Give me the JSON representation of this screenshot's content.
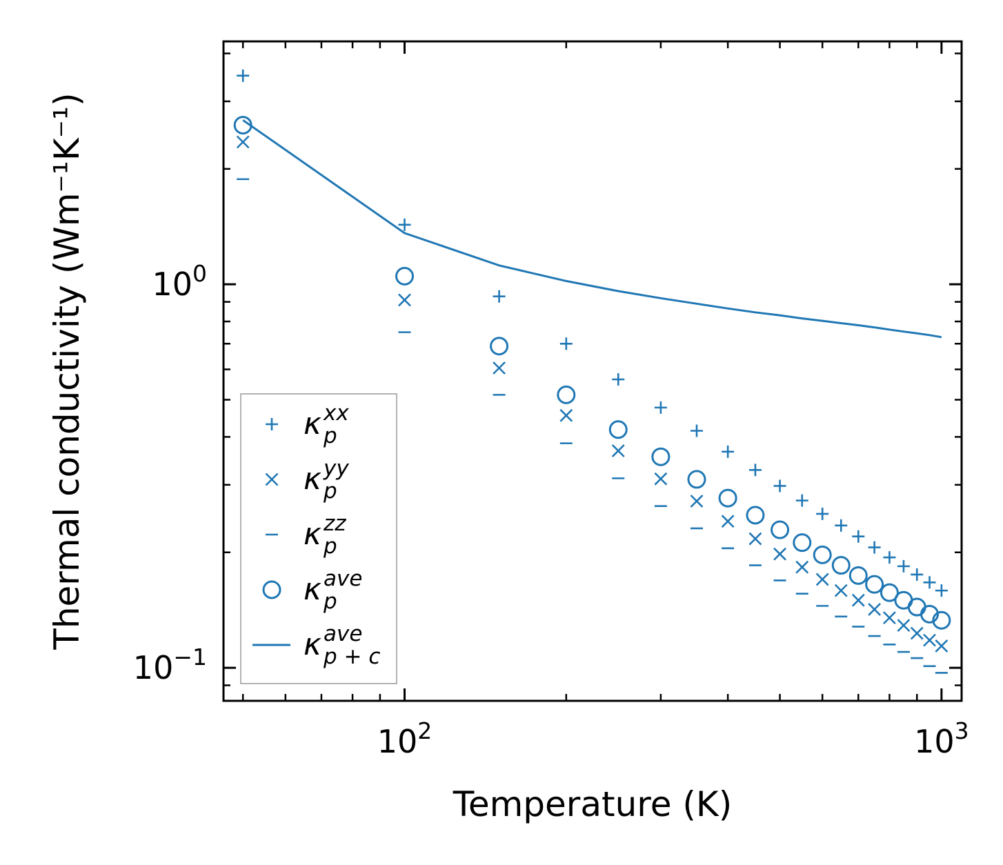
{
  "chart_data": {
    "type": "scatter",
    "title": "",
    "xlabel": "Temperature (K)",
    "ylabel": "Thermal conductivity (Wm⁻¹K⁻¹)",
    "xscale": "log",
    "yscale": "log",
    "xlim": [
      46,
      1090
    ],
    "ylim": [
      0.082,
      4.3
    ],
    "grid": false,
    "legend_position": "lower-left",
    "x_ticks": [
      {
        "value": 100,
        "base": "10",
        "exp": "2"
      },
      {
        "value": 1000,
        "base": "10",
        "exp": "3"
      }
    ],
    "y_ticks": [
      {
        "value": 0.1,
        "base": "10",
        "exp": "−1"
      },
      {
        "value": 1,
        "base": "10",
        "exp": "0"
      }
    ],
    "color": "#1f77b4",
    "x": [
      50,
      100,
      150,
      200,
      250,
      300,
      350,
      400,
      450,
      500,
      550,
      600,
      650,
      700,
      750,
      800,
      850,
      900,
      950,
      1000
    ],
    "series": [
      {
        "name": "kxx",
        "marker": "plus",
        "legend": {
          "base": "κ",
          "sub": "p",
          "sup": "xx"
        },
        "values": [
          3.5,
          1.43,
          0.93,
          0.7,
          0.565,
          0.477,
          0.415,
          0.366,
          0.328,
          0.298,
          0.273,
          0.252,
          0.235,
          0.22,
          0.206,
          0.194,
          0.184,
          0.175,
          0.167,
          0.159
        ]
      },
      {
        "name": "kyy",
        "marker": "x",
        "legend": {
          "base": "κ",
          "sub": "p",
          "sup": "yy"
        },
        "values": [
          2.35,
          0.91,
          0.605,
          0.455,
          0.368,
          0.311,
          0.272,
          0.241,
          0.217,
          0.198,
          0.183,
          0.17,
          0.159,
          0.15,
          0.142,
          0.135,
          0.129,
          0.123,
          0.118,
          0.114
        ]
      },
      {
        "name": "kzz",
        "marker": "minus",
        "legend": {
          "base": "κ",
          "sub": "p",
          "sup": "zz"
        },
        "values": [
          1.88,
          0.75,
          0.515,
          0.385,
          0.312,
          0.264,
          0.231,
          0.205,
          0.185,
          0.169,
          0.156,
          0.145,
          0.136,
          0.128,
          0.121,
          0.115,
          0.11,
          0.106,
          0.101,
          0.097
        ]
      },
      {
        "name": "kave",
        "marker": "circle",
        "legend": {
          "base": "κ",
          "sub": "p",
          "sup": "ave"
        },
        "values": [
          2.6,
          1.05,
          0.69,
          0.515,
          0.418,
          0.355,
          0.31,
          0.277,
          0.25,
          0.229,
          0.212,
          0.197,
          0.185,
          0.174,
          0.165,
          0.157,
          0.15,
          0.144,
          0.138,
          0.133
        ]
      },
      {
        "name": "kave_pc",
        "marker": "line",
        "legend": {
          "base": "κ",
          "sub": "p + c",
          "sup": "ave"
        },
        "values": [
          2.68,
          1.36,
          1.12,
          1.02,
          0.96,
          0.92,
          0.89,
          0.865,
          0.845,
          0.83,
          0.815,
          0.803,
          0.792,
          0.782,
          0.772,
          0.762,
          0.753,
          0.745,
          0.737,
          0.728
        ]
      }
    ]
  }
}
